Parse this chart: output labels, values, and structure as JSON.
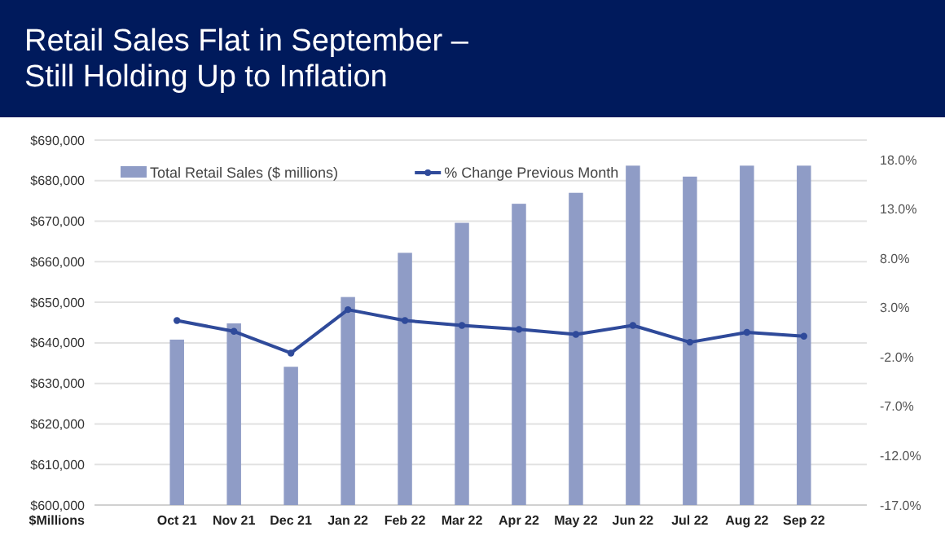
{
  "chart_data": {
    "type": "bar",
    "title": "Retail Sales Flat in September –\nStill Holding Up to Inflation",
    "ylabel": "$Millions",
    "categories": [
      "Oct 21",
      "Nov 21",
      "Dec 21",
      "Jan 22",
      "Feb 22",
      "Mar 22",
      "Apr 22",
      "May 22",
      "Jun 22",
      "Jul 22",
      "Aug 22",
      "Sep 22"
    ],
    "series": [
      {
        "name": "Total Retail Sales ($ millions)",
        "color": "#8f9cc6",
        "values": [
          640800,
          644800,
          634100,
          651300,
          662200,
          669600,
          674300,
          677000,
          683700,
          681000,
          683700,
          683700
        ]
      },
      {
        "name": "% Change Previous Month",
        "type": "line",
        "axis": "y2",
        "color": "#2f4a9a",
        "values": [
          1.7,
          0.6,
          -1.6,
          2.8,
          1.7,
          1.2,
          0.8,
          0.3,
          1.2,
          -0.5,
          0.5,
          0.1
        ]
      }
    ],
    "ylim": [
      600000,
      690000
    ],
    "yticks": [
      {
        "value": 600000,
        "label": "$600,000"
      },
      {
        "value": 610000,
        "label": "$610,000"
      },
      {
        "value": 620000,
        "label": "$620,000"
      },
      {
        "value": 630000,
        "label": "$630,000"
      },
      {
        "value": 640000,
        "label": "$640,000"
      },
      {
        "value": 650000,
        "label": "$650,000"
      },
      {
        "value": 660000,
        "label": "$660,000"
      },
      {
        "value": 670000,
        "label": "$670,000"
      },
      {
        "value": 680000,
        "label": "$680,000"
      },
      {
        "value": 690000,
        "label": "$690,000"
      }
    ],
    "y2lim": [
      -17,
      18
    ],
    "y2ticks": [
      {
        "value": -17,
        "label": "-17.0%"
      },
      {
        "value": -12,
        "label": "-12.0%"
      },
      {
        "value": -7,
        "label": "-7.0%"
      },
      {
        "value": -2,
        "label": "-2.0%"
      },
      {
        "value": 3,
        "label": "3.0%"
      },
      {
        "value": 8,
        "label": "8.0%"
      },
      {
        "value": 13,
        "label": "13.0%"
      },
      {
        "value": 18,
        "label": "18.0%"
      }
    ],
    "grid": "y",
    "legend": "top",
    "marker": "circle",
    "line_style": "solid"
  }
}
